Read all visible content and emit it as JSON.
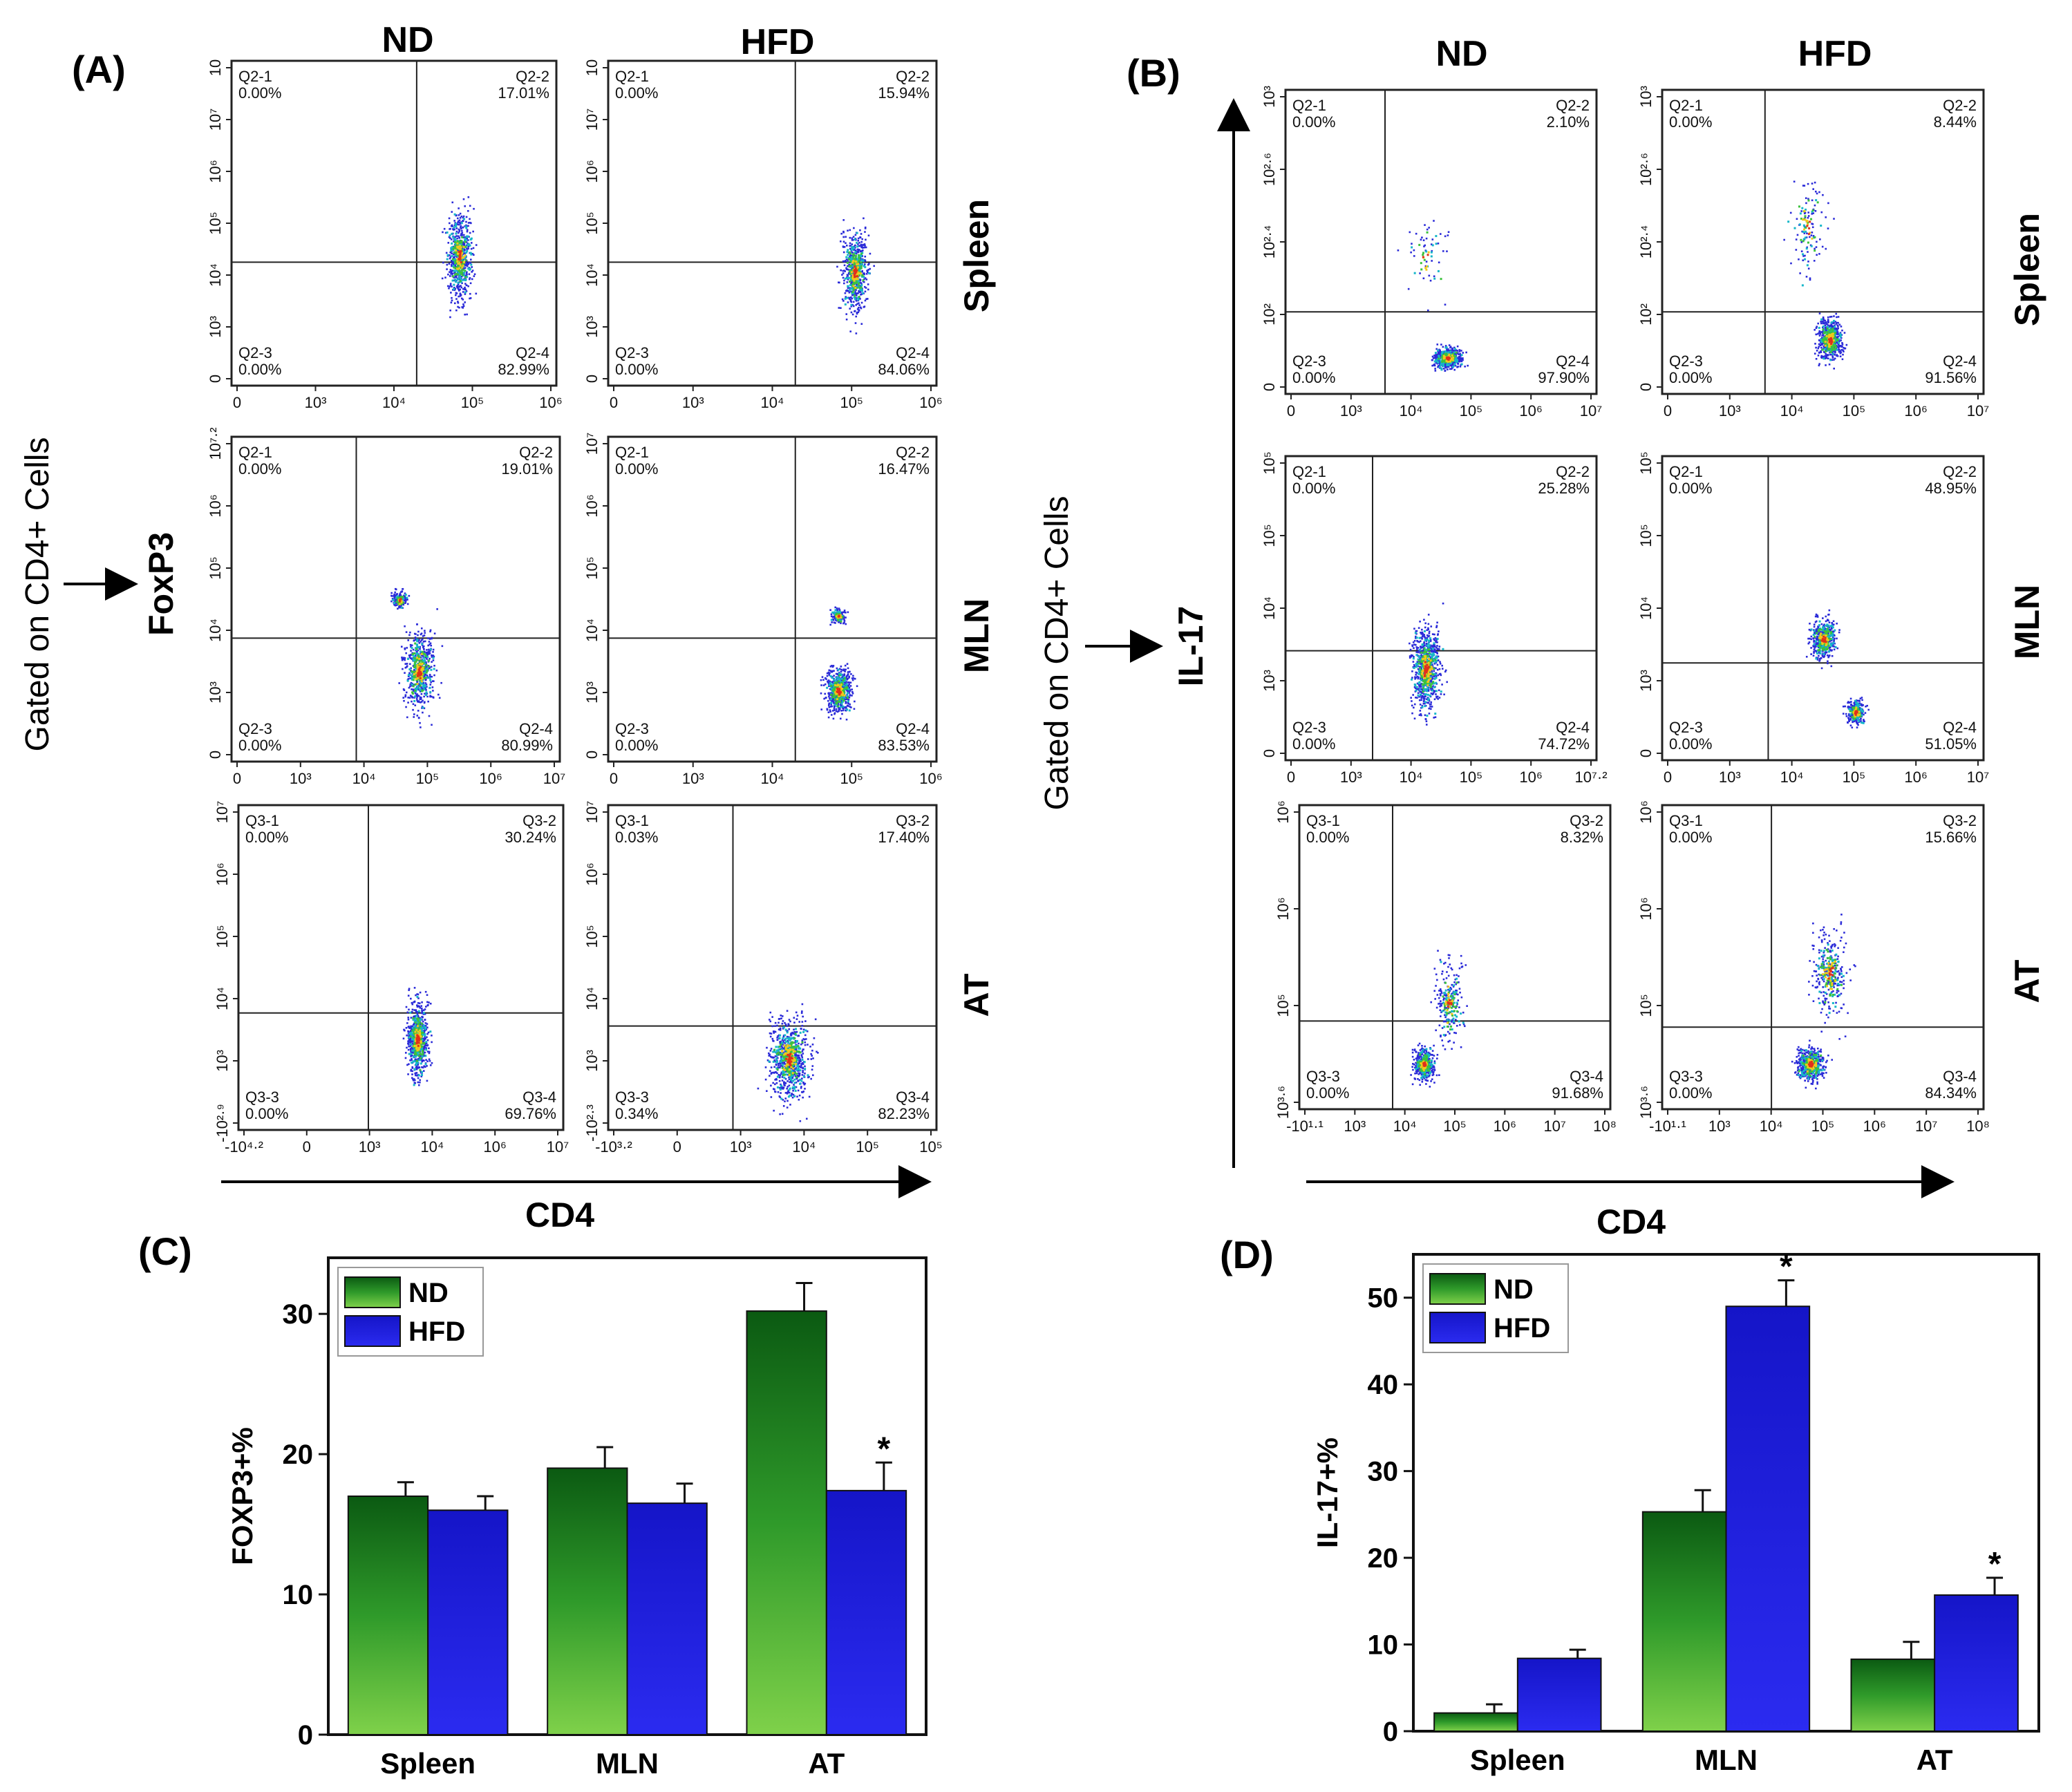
{
  "panel_labels": {
    "A": "(A)",
    "B": "(B)",
    "C": "(C)",
    "D": "(D)"
  },
  "panel_A": {
    "col_headers": [
      "ND",
      "HFD"
    ],
    "row_labels": [
      "Spleen",
      "MLN",
      "AT"
    ],
    "gating_text": "Gated on CD4+ Cells",
    "y_marker": "FoxP3",
    "x_axis_label": "CD4",
    "plots": [
      {
        "q": [
          "Q2-1 0.00%",
          "Q2-2 17.01%",
          "Q2-3 0.00%",
          "Q2-4 82.99%"
        ],
        "yticks": [
          "10",
          "10⁷",
          "10⁶",
          "10⁵",
          "10⁴",
          "10³",
          "0"
        ],
        "xticks": [
          "0",
          "10³",
          "10⁴",
          "10⁵",
          "10⁶"
        ]
      },
      {
        "q": [
          "Q2-1 0.00%",
          "Q2-2 15.94%",
          "Q2-3 0.00%",
          "Q2-4 84.06%"
        ],
        "yticks": [
          "10",
          "10⁷",
          "10⁶",
          "10⁵",
          "10⁴",
          "10³",
          "0"
        ],
        "xticks": [
          "0",
          "10³",
          "10⁴",
          "10⁵",
          "10⁶"
        ]
      },
      {
        "q": [
          "Q2-1 0.00%",
          "Q2-2 19.01%",
          "Q2-3 0.00%",
          "Q2-4 80.99%"
        ],
        "yticks": [
          "10⁷·²",
          "10⁶",
          "10⁵",
          "10⁴",
          "10³",
          "0"
        ],
        "xticks": [
          "0",
          "10³",
          "10⁴",
          "10⁵",
          "10⁶",
          "10⁷"
        ]
      },
      {
        "q": [
          "Q2-1 0.00%",
          "Q2-2 16.47%",
          "Q2-3 0.00%",
          "Q2-4 83.53%"
        ],
        "yticks": [
          "10⁷",
          "10⁶",
          "10⁵",
          "10⁴",
          "10³",
          "0"
        ],
        "xticks": [
          "0",
          "10³",
          "10⁴",
          "10⁵",
          "10⁶"
        ]
      },
      {
        "q": [
          "Q3-1 0.00%",
          "Q3-2 30.24%",
          "Q3-3 0.00%",
          "Q3-4 69.76%"
        ],
        "yticks": [
          "10⁷",
          "10⁶",
          "10⁵",
          "10⁴",
          "10³",
          "-10²·⁹"
        ],
        "xticks": [
          "-10⁴·²",
          "0",
          "10³",
          "10⁴",
          "10⁶",
          "10⁷"
        ]
      },
      {
        "q": [
          "Q3-1 0.03%",
          "Q3-2 17.40%",
          "Q3-3 0.34%",
          "Q3-4 82.23%"
        ],
        "yticks": [
          "10⁷",
          "10⁶",
          "10⁵",
          "10⁴",
          "10³",
          "-10²·³"
        ],
        "xticks": [
          "-10³·²",
          "0",
          "10³",
          "10⁴",
          "10⁵",
          "10⁵"
        ]
      }
    ]
  },
  "panel_B": {
    "col_headers": [
      "ND",
      "HFD"
    ],
    "row_labels": [
      "Spleen",
      "MLN",
      "AT"
    ],
    "gating_text": "Gated on CD4+ Cells",
    "y_marker": "IL-17",
    "x_axis_label": "CD4",
    "plots": [
      {
        "q": [
          "Q2-1 0.00%",
          "Q2-2 2.10%",
          "Q2-3 0.00%",
          "Q2-4 97.90%"
        ],
        "yticks": [
          "10³",
          "10²·⁶",
          "10²·⁴",
          "10²",
          "0"
        ],
        "xticks": [
          "0",
          "10³",
          "10⁴",
          "10⁵",
          "10⁶",
          "10⁷"
        ]
      },
      {
        "q": [
          "Q2-1 0.00%",
          "Q2-2 8.44%",
          "Q2-3 0.00%",
          "Q2-4 91.56%"
        ],
        "yticks": [
          "10³",
          "10²·⁶",
          "10²·⁴",
          "10²",
          "0"
        ],
        "xticks": [
          "0",
          "10³",
          "10⁴",
          "10⁵",
          "10⁶",
          "10⁷"
        ]
      },
      {
        "q": [
          "Q2-1 0.00%",
          "Q2-2 25.28%",
          "Q2-3 0.00%",
          "Q2-4 74.72%"
        ],
        "yticks": [
          "10⁵",
          "10⁵",
          "10⁴",
          "10³",
          "0"
        ],
        "xticks": [
          "0",
          "10³",
          "10⁴",
          "10⁵",
          "10⁶",
          "10⁷·²"
        ]
      },
      {
        "q": [
          "Q2-1 0.00%",
          "Q2-2 48.95%",
          "Q2-3 0.00%",
          "Q2-4 51.05%"
        ],
        "yticks": [
          "10⁵",
          "10⁵",
          "10⁴",
          "10³",
          "0"
        ],
        "xticks": [
          "0",
          "10³",
          "10⁴",
          "10⁵",
          "10⁶",
          "10⁷"
        ]
      },
      {
        "q": [
          "Q3-1 0.00%",
          "Q3-2 8.32%",
          "Q3-3 0.00%",
          "Q3-4 91.68%"
        ],
        "yticks": [
          "10⁶",
          "10⁶",
          "10⁵",
          "10³·⁶"
        ],
        "xticks": [
          "-10¹·¹",
          "10³",
          "10⁴",
          "10⁵",
          "10⁶",
          "10⁷",
          "10⁸"
        ]
      },
      {
        "q": [
          "Q3-1 0.00%",
          "Q3-2 15.66%",
          "Q3-3 0.00%",
          "Q3-4 84.34%"
        ],
        "yticks": [
          "10⁶",
          "10⁶",
          "10⁵",
          "10³·⁶"
        ],
        "xticks": [
          "-10¹·¹",
          "10³",
          "10⁴",
          "10⁵",
          "10⁶",
          "10⁷",
          "10⁸"
        ]
      }
    ]
  },
  "chart_data": [
    {
      "type": "bar",
      "title": "",
      "xlabel": "",
      "ylabel": "FOXP3+%",
      "categories": [
        "Spleen",
        "MLN",
        "AT"
      ],
      "series": [
        {
          "name": "ND",
          "values": [
            17.0,
            19.0,
            30.2
          ],
          "errors": [
            1.0,
            1.5,
            2.0
          ],
          "significant": [
            false,
            false,
            false
          ]
        },
        {
          "name": "HFD",
          "values": [
            16.0,
            16.5,
            17.4
          ],
          "errors": [
            1.0,
            1.4,
            2.0
          ],
          "significant": [
            false,
            false,
            true
          ]
        }
      ],
      "ylim": [
        0,
        34
      ],
      "yticks": [
        "0",
        "10",
        "20",
        "30"
      ],
      "sig_marker": "*",
      "legend": "top-left",
      "colors": {
        "ND": "#1f7a1f",
        "HFD": "#1a1ad6"
      }
    },
    {
      "type": "bar",
      "title": "",
      "xlabel": "",
      "ylabel": "IL-17+%",
      "categories": [
        "Spleen",
        "MLN",
        "AT"
      ],
      "series": [
        {
          "name": "ND",
          "values": [
            2.1,
            25.3,
            8.3
          ],
          "errors": [
            1.0,
            2.5,
            2.0
          ],
          "significant": [
            false,
            false,
            false
          ]
        },
        {
          "name": "HFD",
          "values": [
            8.4,
            49.0,
            15.7
          ],
          "errors": [
            1.0,
            3.0,
            2.0
          ],
          "significant": [
            false,
            true,
            true
          ]
        }
      ],
      "ylim": [
        0,
        55
      ],
      "yticks": [
        "0",
        "10",
        "20",
        "30",
        "40",
        "50"
      ],
      "sig_marker": "*",
      "legend": "top-left",
      "colors": {
        "ND": "#1f7a1f",
        "HFD": "#1a1ad6"
      }
    }
  ]
}
